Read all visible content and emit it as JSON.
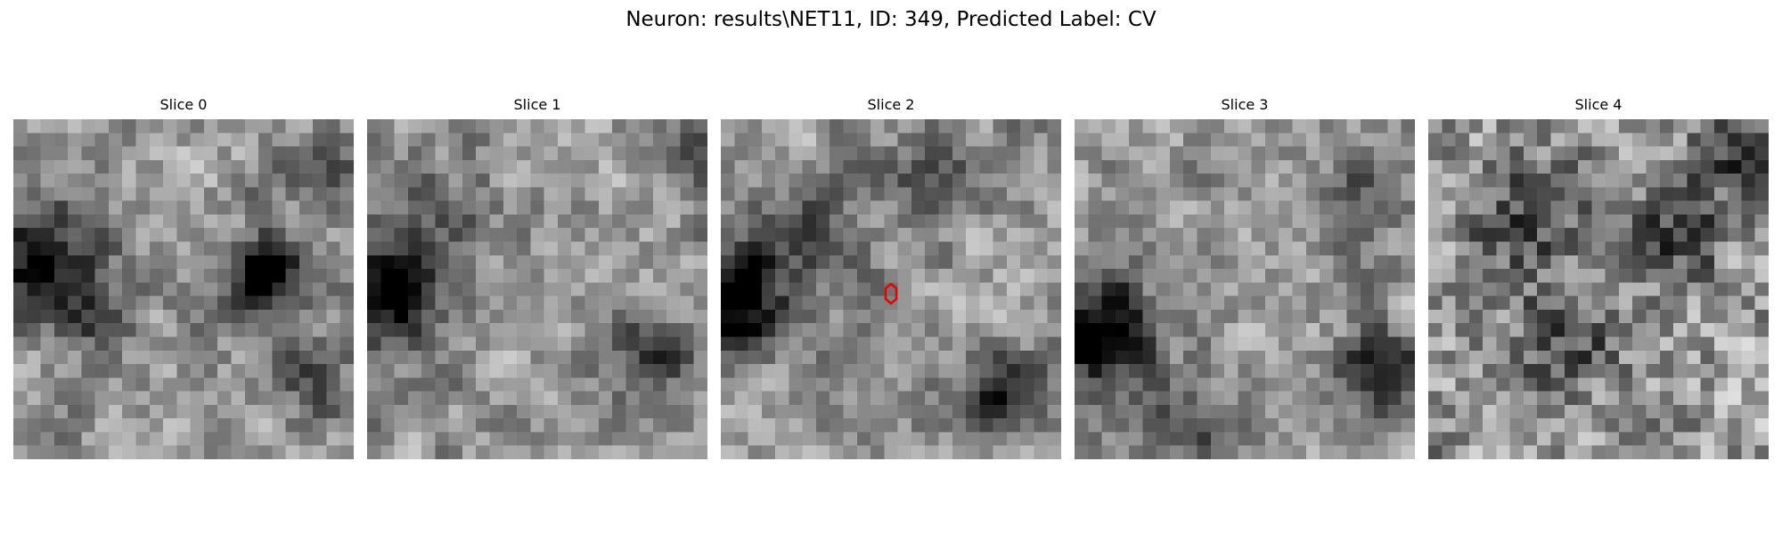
{
  "figure": {
    "title": "Neuron: results\\NET11, ID: 349, Predicted Label: CV"
  },
  "slices": [
    {
      "title": "Slice 0",
      "index": 0,
      "has_marker": false
    },
    {
      "title": "Slice 1",
      "index": 1,
      "has_marker": false
    },
    {
      "title": "Slice 2",
      "index": 2,
      "has_marker": true
    },
    {
      "title": "Slice 3",
      "index": 3,
      "has_marker": false
    },
    {
      "title": "Slice 4",
      "index": 4,
      "has_marker": false
    }
  ],
  "colors": {
    "marker": "#ee0000",
    "background": "#ffffff"
  },
  "image": {
    "grid": 25,
    "colormap": "gray"
  }
}
